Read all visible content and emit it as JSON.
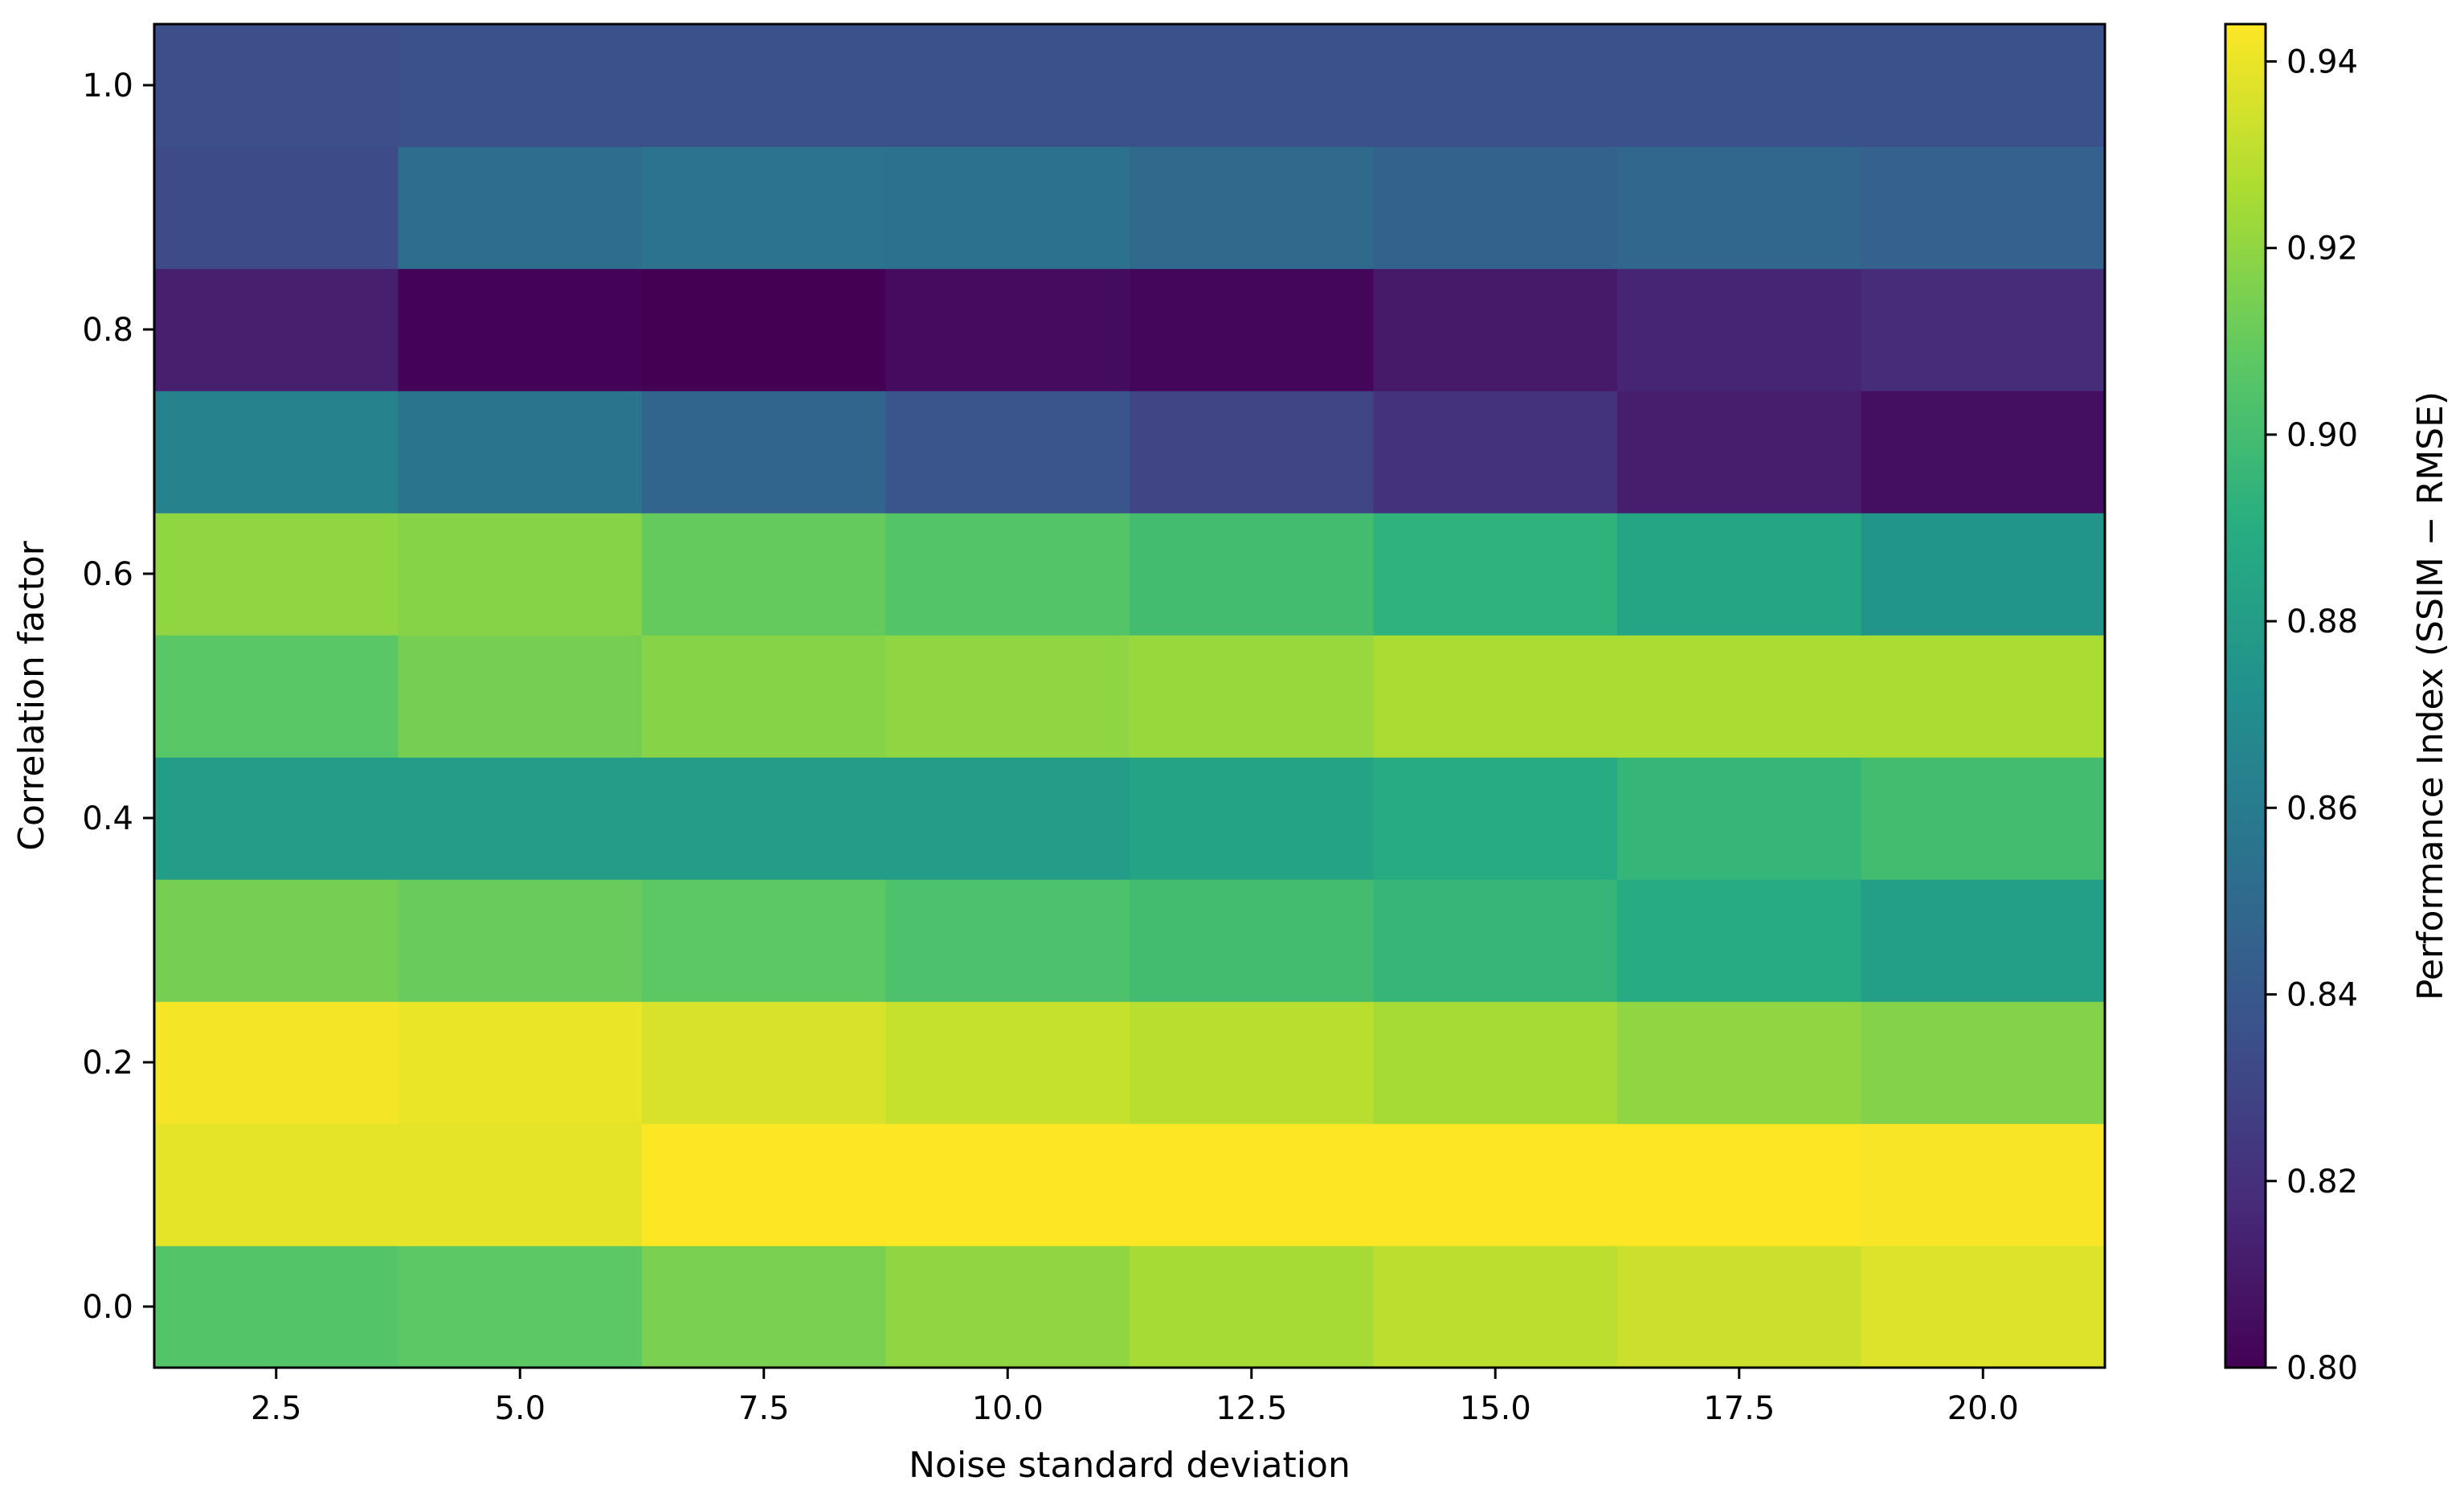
{
  "chart_data": {
    "type": "heatmap",
    "colormap": "viridis",
    "xlabel": "Noise standard deviation",
    "ylabel": "Correlation factor",
    "x": [
      2.5,
      5.0,
      7.5,
      10.0,
      12.5,
      15.0,
      17.5,
      20.0
    ],
    "y": [
      0.0,
      0.1,
      0.2,
      0.3,
      0.4,
      0.5,
      0.6,
      0.7,
      0.8,
      0.9,
      1.0
    ],
    "xlim": [
      1.25,
      21.25
    ],
    "ylim": [
      -0.05,
      1.05
    ],
    "x_ticks": [
      "2.5",
      "5.0",
      "7.5",
      "10.0",
      "12.5",
      "15.0",
      "17.5",
      "20.0"
    ],
    "y_ticks": [
      "0.0",
      "0.2",
      "0.4",
      "0.6",
      "0.8",
      "1.0"
    ],
    "values": [
      [
        0.905,
        0.908,
        0.915,
        0.92,
        0.925,
        0.93,
        0.933,
        0.937
      ],
      [
        0.939,
        0.939,
        0.944,
        0.944,
        0.944,
        0.944,
        0.944,
        0.943
      ],
      [
        0.942,
        0.94,
        0.936,
        0.932,
        0.929,
        0.925,
        0.92,
        0.917
      ],
      [
        0.914,
        0.911,
        0.908,
        0.903,
        0.9,
        0.895,
        0.889,
        0.881
      ],
      [
        0.88,
        0.88,
        0.88,
        0.88,
        0.884,
        0.889,
        0.895,
        0.9
      ],
      [
        0.907,
        0.914,
        0.918,
        0.92,
        0.922,
        0.926,
        0.926,
        0.926
      ],
      [
        0.92,
        0.918,
        0.91,
        0.905,
        0.9,
        0.893,
        0.885,
        0.875
      ],
      [
        0.864,
        0.856,
        0.847,
        0.838,
        0.83,
        0.821,
        0.812,
        0.806
      ],
      [
        0.813,
        0.801,
        0.8,
        0.804,
        0.802,
        0.81,
        0.815,
        0.818
      ],
      [
        0.833,
        0.852,
        0.855,
        0.854,
        0.85,
        0.846,
        0.848,
        0.845
      ],
      [
        0.835,
        0.836,
        0.836,
        0.836,
        0.836,
        0.836,
        0.836,
        0.836
      ]
    ],
    "colorbar": {
      "label": "Performance Index (SSIM − RMSE)",
      "range": [
        0.8,
        0.944
      ],
      "ticks": [
        "0.80",
        "0.82",
        "0.84",
        "0.86",
        "0.88",
        "0.90",
        "0.92",
        "0.94"
      ]
    },
    "grid": false,
    "legend": "none"
  }
}
